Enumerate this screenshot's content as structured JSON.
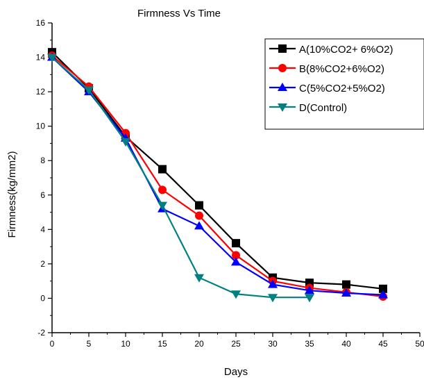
{
  "chart_data": {
    "type": "line",
    "title": "Firmness Vs Time",
    "xlabel": "Days",
    "ylabel": "Firmness(kg/mm2)",
    "xlim": [
      0,
      50
    ],
    "ylim": [
      -2,
      16
    ],
    "xticks": [
      0,
      5,
      10,
      15,
      20,
      25,
      30,
      35,
      40,
      45,
      50
    ],
    "yticks": [
      -2,
      0,
      2,
      4,
      6,
      8,
      10,
      12,
      14,
      16
    ],
    "grid": false,
    "legend_position": "top-right",
    "series": [
      {
        "name": "A(10%CO2+ 6%O2)",
        "color": "#000000",
        "marker": "square",
        "x": [
          0,
          5,
          10,
          15,
          20,
          25,
          30,
          35,
          40,
          45
        ],
        "y": [
          14.3,
          12.2,
          9.4,
          7.5,
          5.4,
          3.2,
          1.2,
          0.9,
          0.8,
          0.55
        ]
      },
      {
        "name": "B(8%CO2+6%O2)",
        "color": "#ff0000",
        "marker": "circle",
        "x": [
          0,
          5,
          10,
          15,
          20,
          25,
          30,
          35,
          40,
          45
        ],
        "y": [
          14.1,
          12.3,
          9.6,
          6.3,
          4.8,
          2.5,
          1.0,
          0.6,
          0.35,
          0.1
        ]
      },
      {
        "name": "C(5%CO2+5%O2)",
        "color": "#0000ff",
        "marker": "triangle-up",
        "x": [
          0,
          5,
          10,
          15,
          20,
          25,
          30,
          35,
          40,
          45
        ],
        "y": [
          14.0,
          12.0,
          9.3,
          5.2,
          4.2,
          2.1,
          0.8,
          0.45,
          0.3,
          0.2
        ]
      },
      {
        "name": "D(Control)",
        "color": "#008080",
        "marker": "triangle-down",
        "x": [
          0,
          5,
          10,
          15,
          20,
          25,
          30,
          35
        ],
        "y": [
          14.0,
          12.1,
          9.1,
          5.4,
          1.2,
          0.25,
          0.05,
          0.05
        ]
      }
    ]
  }
}
